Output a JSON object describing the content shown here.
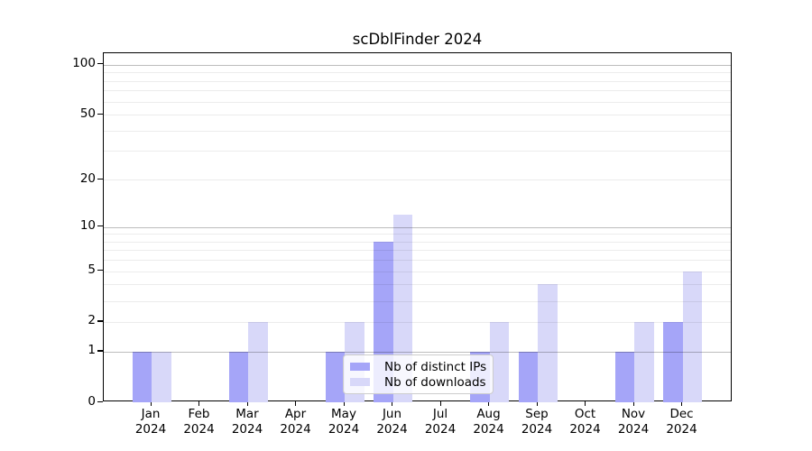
{
  "chart_data": {
    "type": "bar",
    "title": "scDblFinder 2024",
    "year_label": "2024",
    "months": [
      "Jan",
      "Feb",
      "Mar",
      "Apr",
      "May",
      "Jun",
      "Jul",
      "Aug",
      "Sep",
      "Oct",
      "Nov",
      "Dec"
    ],
    "series": [
      {
        "name": "Nb of distinct IPs",
        "color": "#a5a5f8",
        "values": [
          1,
          0,
          1,
          0,
          1,
          8,
          0,
          1,
          1,
          0,
          1,
          2
        ]
      },
      {
        "name": "Nb of downloads",
        "color": "#d8d8f9",
        "values": [
          1,
          0,
          2,
          0,
          2,
          12,
          0,
          2,
          4,
          0,
          2,
          5
        ]
      }
    ],
    "y_axis": {
      "scale": "log1p",
      "tick_values": [
        0,
        1,
        2,
        5,
        10,
        20,
        50,
        100
      ],
      "tick_labels": [
        "0",
        "1",
        "2",
        "5",
        "10",
        "20",
        "50",
        "100"
      ],
      "major_gridlines": [
        1,
        10,
        100
      ],
      "minor_gridlines": [
        2,
        3,
        4,
        5,
        6,
        7,
        8,
        9,
        20,
        30,
        40,
        50,
        60,
        70,
        80,
        90
      ],
      "top_value": 115
    },
    "grid": "horizontal",
    "legend_position": "bottom-center"
  }
}
